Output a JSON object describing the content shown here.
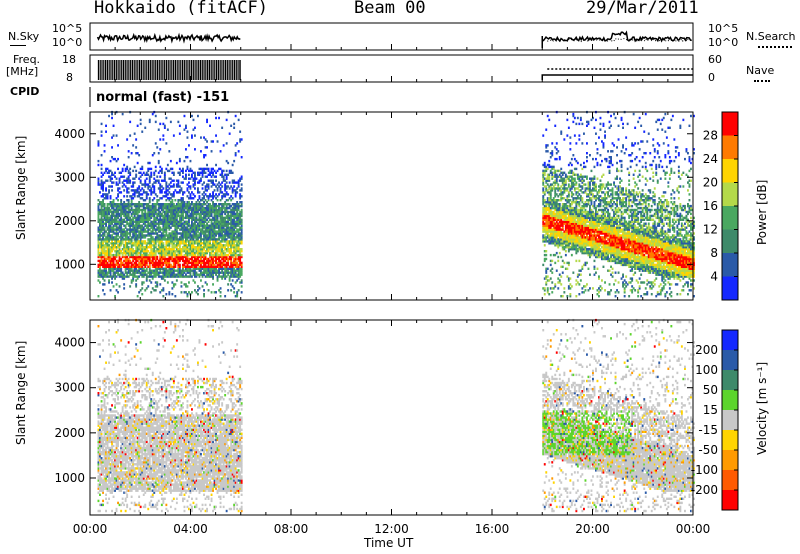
{
  "header": {
    "station": "Hokkaido (fitACF)",
    "beam": "Beam 00",
    "date": "29/Mar/2011"
  },
  "labels": {
    "nsky": "N.Sky",
    "freq": "Freq.",
    "freq_unit": "[MHz]",
    "cpid": "CPID",
    "nsearch": "N.Search",
    "nave": "Nave",
    "cpid_value": "normal (fast) -151"
  },
  "noise_panel": {
    "left_ticks": [
      "10^5",
      "10^0"
    ],
    "right_ticks": [
      "10^5",
      "10^0"
    ]
  },
  "freq_panel": {
    "left_ticks": [
      "18",
      "8"
    ],
    "right_ticks": [
      "60",
      "0"
    ]
  },
  "chart_data": [
    {
      "type": "heatmap",
      "name_in_image": "Power [dB]",
      "xlabel": "",
      "ylabel": "Slant Range [km]",
      "x_range_hours": [
        0,
        24
      ],
      "ylim": [
        180,
        4500
      ],
      "y_ticks": [
        1000,
        2000,
        3000,
        4000
      ],
      "colorbar_label": "Power [dB]",
      "colorbar_ticks": [
        "28",
        "24",
        "20",
        "16",
        "12",
        "8",
        "4"
      ],
      "colorbar_colors": [
        "#ff0000",
        "#ff7a00",
        "#ffd400",
        "#b4d94a",
        "#4aa860",
        "#3e8a6a",
        "#2a5aa8",
        "#1428ff"
      ],
      "data_windows_hours": [
        [
          0.3,
          6.0
        ],
        [
          18.0,
          24.0
        ]
      ]
    },
    {
      "type": "heatmap",
      "xlabel": "Time UT",
      "ylabel": "Slant Range [km]",
      "x_range_hours": [
        0,
        24
      ],
      "ylim": [
        180,
        4500
      ],
      "y_ticks": [
        1000,
        2000,
        3000,
        4000
      ],
      "colorbar_label": "Velocity [m s⁻¹]",
      "colorbar_ticks": [
        "200",
        "100",
        "50",
        "15",
        "-15",
        "-50",
        "-100",
        "-200"
      ],
      "colorbar_colors": [
        "#1428ff",
        "#2a5aa8",
        "#3e8a6a",
        "#5cd42c",
        "#c8c8c8",
        "#ffd400",
        "#ff9a00",
        "#ff5a00",
        "#ff0000"
      ],
      "x_ticks": [
        "00:00",
        "04:00",
        "08:00",
        "12:00",
        "16:00",
        "20:00",
        "00:00"
      ],
      "data_windows_hours": [
        [
          0.3,
          6.0
        ],
        [
          18.0,
          24.0
        ]
      ]
    }
  ]
}
